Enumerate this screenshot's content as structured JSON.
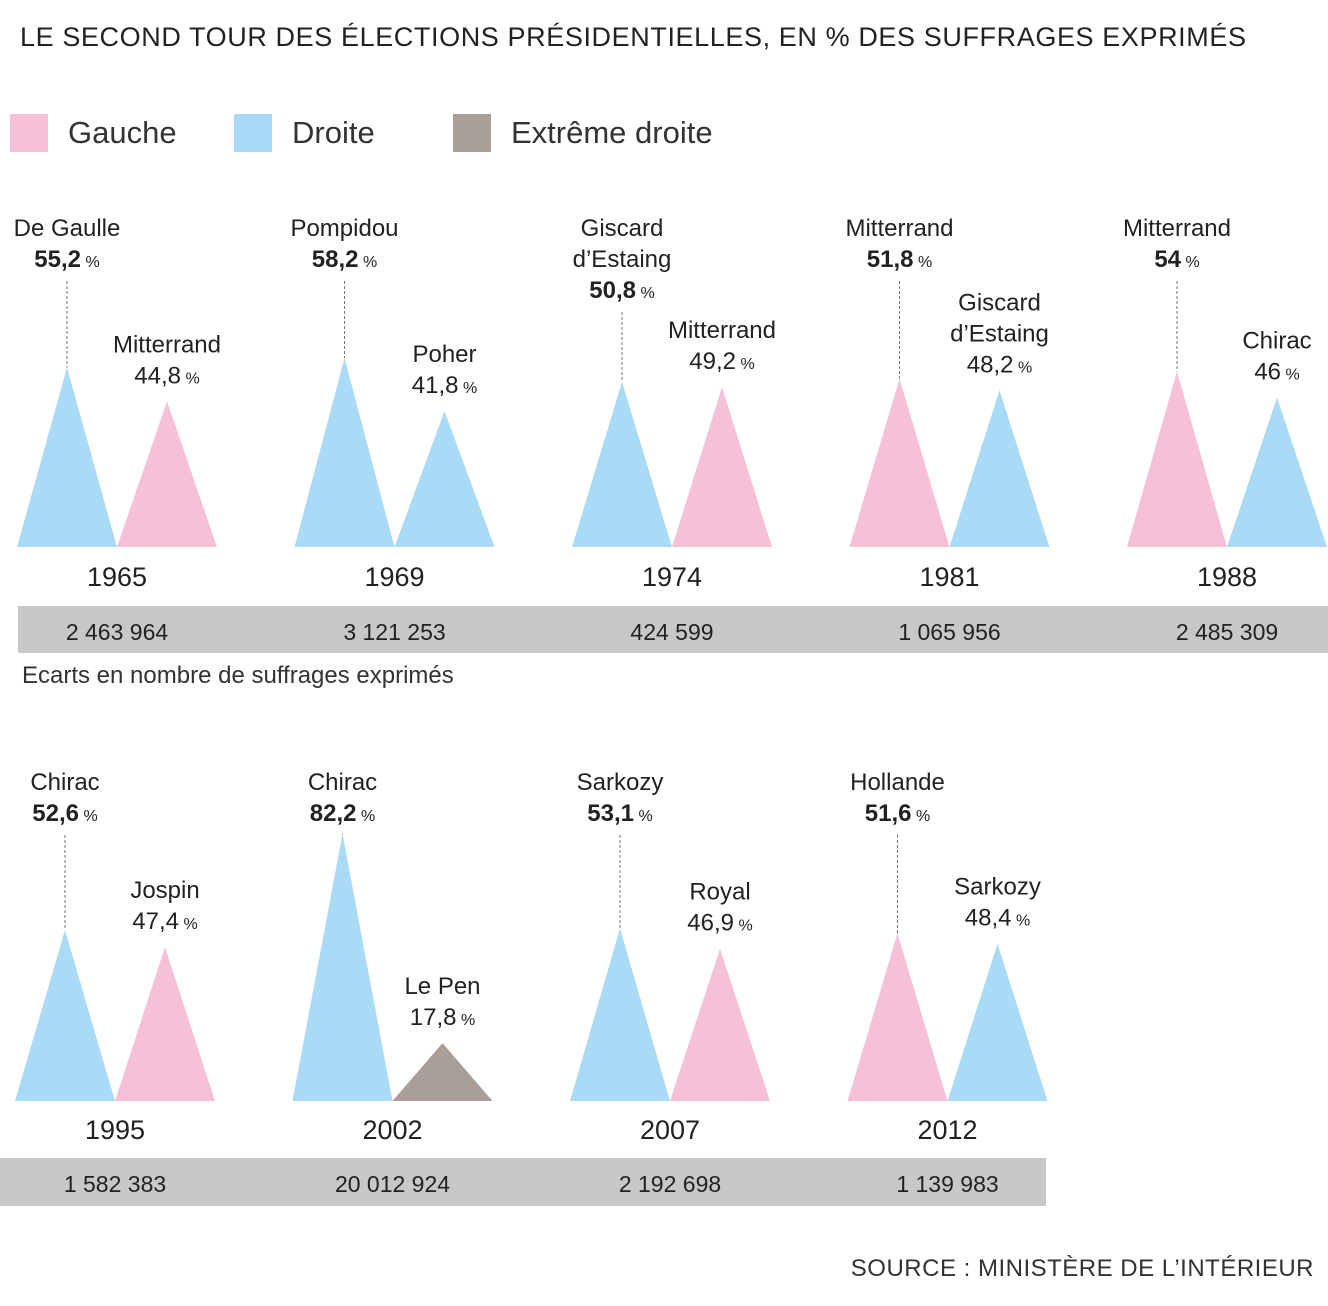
{
  "title": "LE SECOND TOUR DES ÉLECTIONS PRÉSIDENTIELLES, EN % DES SUFFRAGES EXPRIMÉS",
  "legend": [
    {
      "label": "Gauche",
      "color": "#f6c0d8"
    },
    {
      "label": "Droite",
      "color": "#a9dbf6"
    },
    {
      "label": "Extrême droite",
      "color": "#aa9e99"
    }
  ],
  "gap_note": "Ecarts en nombre de suffrages exprimés",
  "source": "SOURCE : MINISTÈRE DE L’INTÉRIEUR",
  "gap_bar_color": "#c8c8c8",
  "chart_data": {
    "type": "triangle-bar",
    "unit": "%",
    "elections": [
      {
        "year": "1965",
        "gap": "2 463 964",
        "winner": {
          "name": "De Gaulle",
          "value": 55.2,
          "side": "Droite"
        },
        "loser": {
          "name": "Mitterrand",
          "value": 44.8,
          "side": "Gauche"
        }
      },
      {
        "year": "1969",
        "gap": "3 121 253",
        "winner": {
          "name": "Pompidou",
          "value": 58.2,
          "side": "Droite"
        },
        "loser": {
          "name": "Poher",
          "value": 41.8,
          "side": "Droite"
        }
      },
      {
        "year": "1974",
        "gap": "424 599",
        "winner": {
          "name": "Giscard\nd’Estaing",
          "value": 50.8,
          "side": "Droite"
        },
        "loser": {
          "name": "Mitterrand",
          "value": 49.2,
          "side": "Gauche"
        }
      },
      {
        "year": "1981",
        "gap": "1 065 956",
        "winner": {
          "name": "Mitterrand",
          "value": 51.8,
          "side": "Gauche"
        },
        "loser": {
          "name": "Giscard\nd’Estaing",
          "value": 48.2,
          "side": "Droite"
        }
      },
      {
        "year": "1988",
        "gap": "2 485 309",
        "winner": {
          "name": "Mitterrand",
          "value": 54,
          "side": "Gauche"
        },
        "loser": {
          "name": "Chirac",
          "value": 46,
          "side": "Droite"
        }
      },
      {
        "year": "1995",
        "gap": "1 582 383",
        "winner": {
          "name": "Chirac",
          "value": 52.6,
          "side": "Droite"
        },
        "loser": {
          "name": "Jospin",
          "value": 47.4,
          "side": "Gauche"
        }
      },
      {
        "year": "2002",
        "gap": "20 012 924",
        "winner": {
          "name": "Chirac",
          "value": 82.2,
          "side": "Droite"
        },
        "loser": {
          "name": "Le Pen",
          "value": 17.8,
          "side": "Extrême droite"
        }
      },
      {
        "year": "2007",
        "gap": "2 192 698",
        "winner": {
          "name": "Sarkozy",
          "value": 53.1,
          "side": "Droite"
        },
        "loser": {
          "name": "Royal",
          "value": 46.9,
          "side": "Gauche"
        }
      },
      {
        "year": "2012",
        "gap": "1 139 983",
        "winner": {
          "name": "Hollande",
          "value": 51.6,
          "side": "Gauche"
        },
        "loser": {
          "name": "Sarkozy",
          "value": 48.4,
          "side": "Droite"
        }
      }
    ]
  }
}
